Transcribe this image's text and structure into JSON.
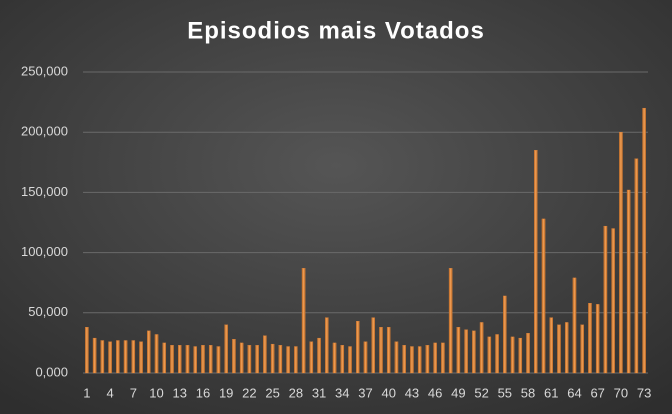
{
  "chart_data": {
    "type": "bar",
    "title": "Episodios mais Votados",
    "categories": [
      1,
      null,
      null,
      4,
      null,
      null,
      7,
      null,
      null,
      10,
      null,
      null,
      13,
      null,
      null,
      16,
      null,
      null,
      19,
      null,
      null,
      22,
      null,
      null,
      25,
      null,
      null,
      28,
      null,
      null,
      31,
      null,
      null,
      34,
      null,
      null,
      37,
      null,
      null,
      40,
      null,
      null,
      43,
      null,
      null,
      46,
      null,
      null,
      49,
      null,
      null,
      52,
      null,
      null,
      55,
      null,
      null,
      58,
      null,
      null,
      61,
      null,
      null,
      64,
      null,
      null,
      67,
      null,
      null,
      70,
      null,
      null,
      73
    ],
    "values": [
      38000,
      29000,
      27000,
      26000,
      27000,
      27000,
      27000,
      26000,
      35000,
      32000,
      25000,
      23000,
      23000,
      23000,
      22000,
      23000,
      23000,
      22000,
      40000,
      28000,
      25000,
      23000,
      23000,
      31000,
      24000,
      23000,
      22000,
      22000,
      87000,
      26000,
      29000,
      46000,
      25000,
      23000,
      22000,
      43000,
      26000,
      46000,
      38000,
      38000,
      26000,
      23000,
      22000,
      22000,
      23000,
      25000,
      25000,
      87000,
      38000,
      36000,
      35000,
      42000,
      30000,
      32000,
      64000,
      30000,
      29000,
      33000,
      185000,
      128000,
      46000,
      40000,
      42000,
      79000,
      40000,
      58000,
      57000,
      122000,
      120000,
      200000,
      152000,
      178000,
      220000
    ],
    "color": "#e8883a",
    "ylim": [
      0,
      250000
    ],
    "yticks": [
      {
        "value": 0,
        "label": "0,000"
      },
      {
        "value": 50000,
        "label": "50,000"
      },
      {
        "value": 100000,
        "label": "100,000"
      },
      {
        "value": 150000,
        "label": "150,000"
      },
      {
        "value": 200000,
        "label": "200,000"
      },
      {
        "value": 250000,
        "label": "250,000"
      }
    ],
    "grid": true
  }
}
